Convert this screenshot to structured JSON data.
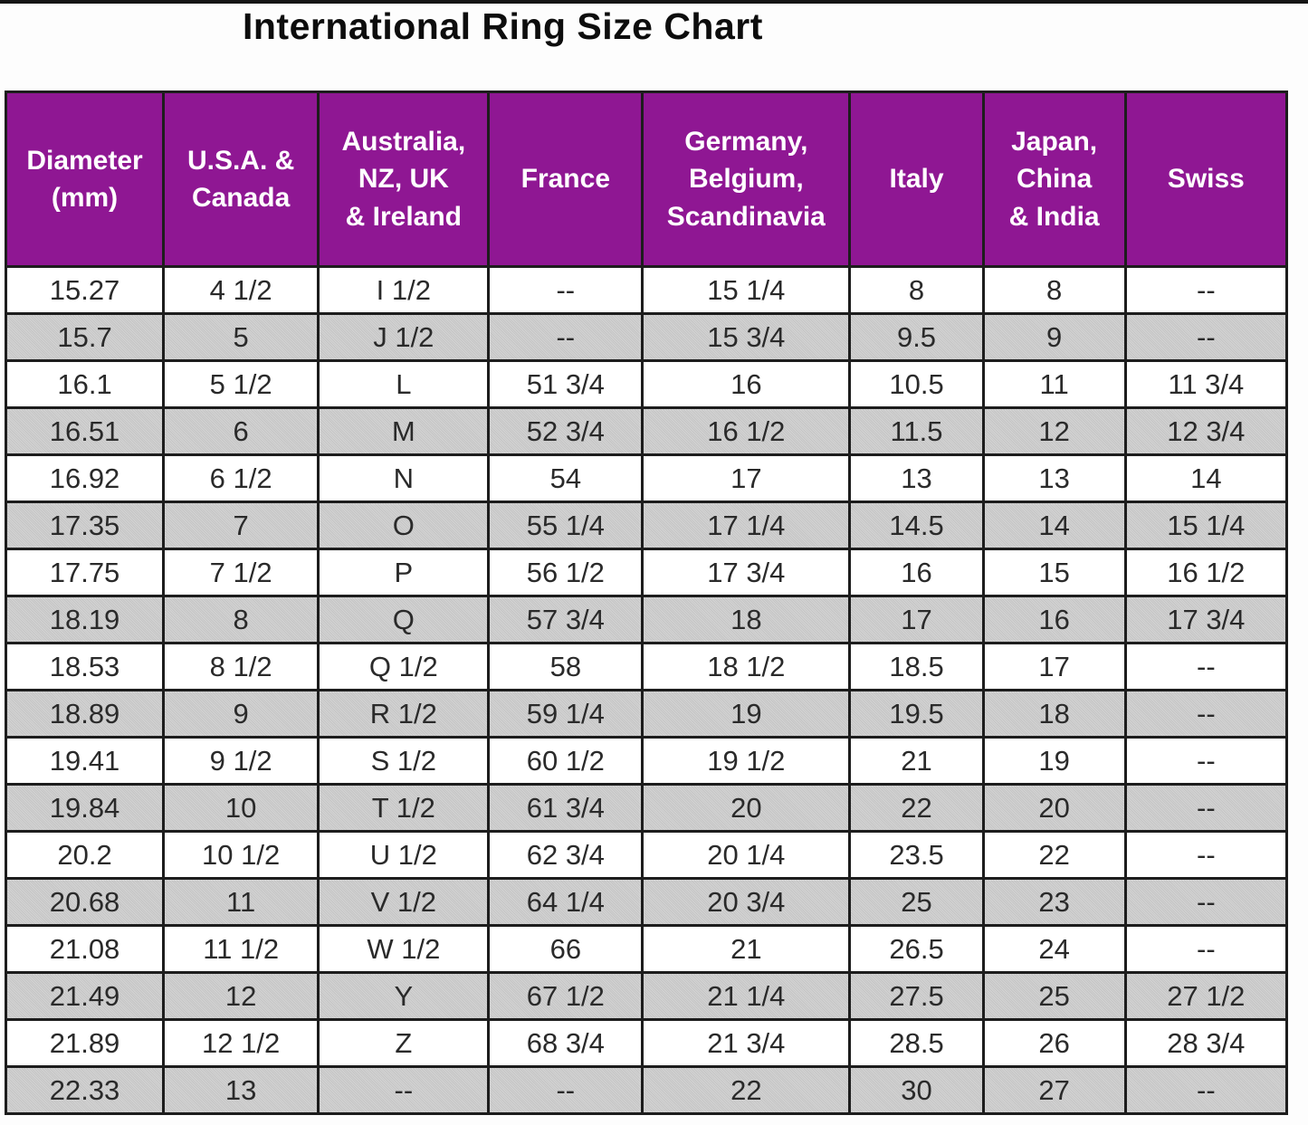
{
  "title": "International Ring Size Chart",
  "colors": {
    "header_bg": "#8F1793",
    "header_text": "#ffffff",
    "row_bg": "#ffffff",
    "row_alt_bg": "#c9c9c9",
    "border": "#1d1d1d",
    "cell_text": "#2a2a2a"
  },
  "chart_data": {
    "type": "table",
    "title": "International Ring Size Chart",
    "columns": [
      "Diameter\n(mm)",
      "U.S.A. &\nCanada",
      "Australia,\nNZ, UK\n& Ireland",
      "France",
      "Germany,\nBelgium,\nScandinavia",
      "Italy",
      "Japan,\nChina\n& India",
      "Swiss"
    ],
    "rows": [
      [
        "15.27",
        "4 1/2",
        "I 1/2",
        "--",
        "15 1/4",
        "8",
        "8",
        "--"
      ],
      [
        "15.7",
        "5",
        "J 1/2",
        "--",
        "15 3/4",
        "9.5",
        "9",
        "--"
      ],
      [
        "16.1",
        "5 1/2",
        "L",
        "51 3/4",
        "16",
        "10.5",
        "11",
        "11 3/4"
      ],
      [
        "16.51",
        "6",
        "M",
        "52 3/4",
        "16 1/2",
        "11.5",
        "12",
        "12 3/4"
      ],
      [
        "16.92",
        "6 1/2",
        "N",
        "54",
        "17",
        "13",
        "13",
        "14"
      ],
      [
        "17.35",
        "7",
        "O",
        "55 1/4",
        "17 1/4",
        "14.5",
        "14",
        "15 1/4"
      ],
      [
        "17.75",
        "7 1/2",
        "P",
        "56 1/2",
        "17 3/4",
        "16",
        "15",
        "16 1/2"
      ],
      [
        "18.19",
        "8",
        "Q",
        "57 3/4",
        "18",
        "17",
        "16",
        "17 3/4"
      ],
      [
        "18.53",
        "8 1/2",
        "Q 1/2",
        "58",
        "18 1/2",
        "18.5",
        "17",
        "--"
      ],
      [
        "18.89",
        "9",
        "R 1/2",
        "59 1/4",
        "19",
        "19.5",
        "18",
        "--"
      ],
      [
        "19.41",
        "9 1/2",
        "S 1/2",
        "60 1/2",
        "19 1/2",
        "21",
        "19",
        "--"
      ],
      [
        "19.84",
        "10",
        "T 1/2",
        "61 3/4",
        "20",
        "22",
        "20",
        "--"
      ],
      [
        "20.2",
        "10 1/2",
        "U 1/2",
        "62 3/4",
        "20 1/4",
        "23.5",
        "22",
        "--"
      ],
      [
        "20.68",
        "11",
        "V 1/2",
        "64 1/4",
        "20 3/4",
        "25",
        "23",
        "--"
      ],
      [
        "21.08",
        "11 1/2",
        "W 1/2",
        "66",
        "21",
        "26.5",
        "24",
        "--"
      ],
      [
        "21.49",
        "12",
        "Y",
        "67 1/2",
        "21 1/4",
        "27.5",
        "25",
        "27 1/2"
      ],
      [
        "21.89",
        "12 1/2",
        "Z",
        "68 3/4",
        "21 3/4",
        "28.5",
        "26",
        "28 3/4"
      ],
      [
        "22.33",
        "13",
        "--",
        "--",
        "22",
        "30",
        "27",
        "--"
      ]
    ]
  }
}
